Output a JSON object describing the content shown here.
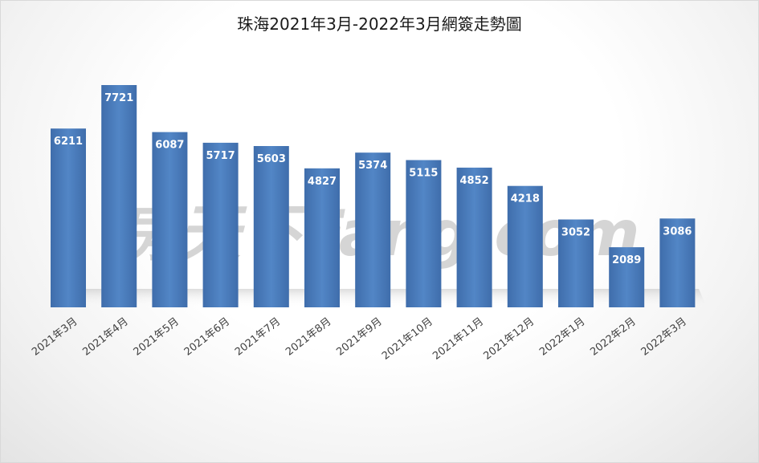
{
  "chart_data": {
    "type": "bar",
    "title": "珠海2021年3月-2022年3月網簽走勢圖",
    "categories": [
      "2021年3月",
      "2021年4月",
      "2021年5月",
      "2021年6月",
      "2021年7月",
      "2021年8月",
      "2021年9月",
      "2021年10月",
      "2021年11月",
      "2021年12月",
      "2022年1月",
      "2022年2月",
      "2022年3月"
    ],
    "values": [
      6211,
      7721,
      6087,
      5717,
      5603,
      4827,
      5374,
      5115,
      4852,
      4218,
      3052,
      2089,
      3086
    ],
    "xlabel": "",
    "ylabel": "",
    "ylim": [
      0,
      8000
    ],
    "grid": false,
    "legend": "none",
    "bar_color": "#4a78b5",
    "bar_color_light": "#5b8ac8",
    "bar_color_dark": "#3b66a3",
    "data_label_color": "#ffffff"
  },
  "watermark": {
    "text": "房天下Fang.com",
    "color": "#8a8a8a"
  }
}
